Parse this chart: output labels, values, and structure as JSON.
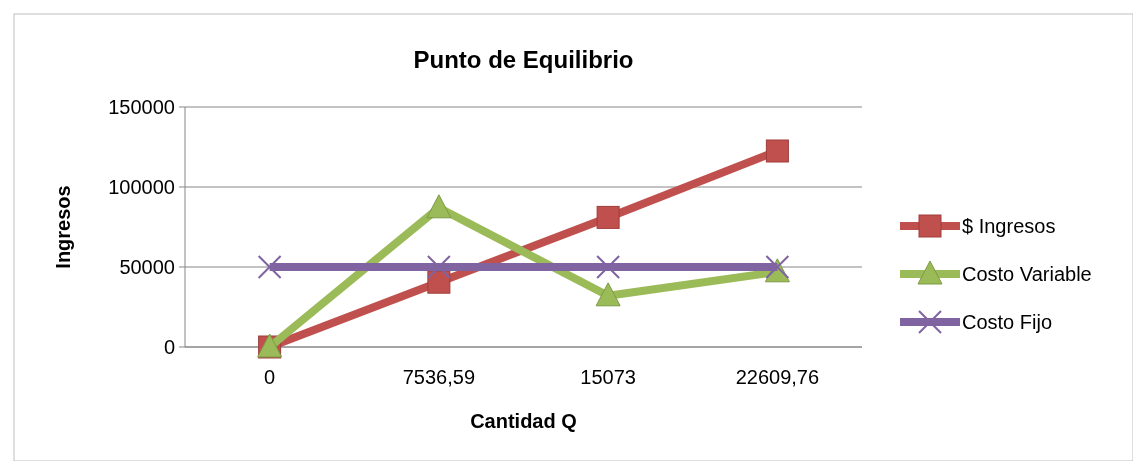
{
  "chart_data": {
    "type": "line",
    "title": "Punto de Equilibrio",
    "xlabel": "Cantidad Q",
    "ylabel": "Ingresos",
    "categories": [
      "0",
      "7536,59",
      "15073",
      "22609,76"
    ],
    "series": [
      {
        "name": "$ Ingresos",
        "color": "#c0504d",
        "marker": "square",
        "values": [
          0,
          40500,
          81000,
          122500
        ]
      },
      {
        "name": "Costo Variable",
        "color": "#9bbb59",
        "marker": "triangle",
        "values": [
          0,
          87000,
          32000,
          47000
        ]
      },
      {
        "name": "Costo Fijo",
        "color": "#8064a2",
        "marker": "cross",
        "values": [
          50000,
          50000,
          50000,
          50000
        ]
      }
    ],
    "ylim": [
      0,
      150000
    ],
    "yticks": [
      0,
      50000,
      100000,
      150000
    ],
    "grid": "y",
    "legend": "right"
  }
}
